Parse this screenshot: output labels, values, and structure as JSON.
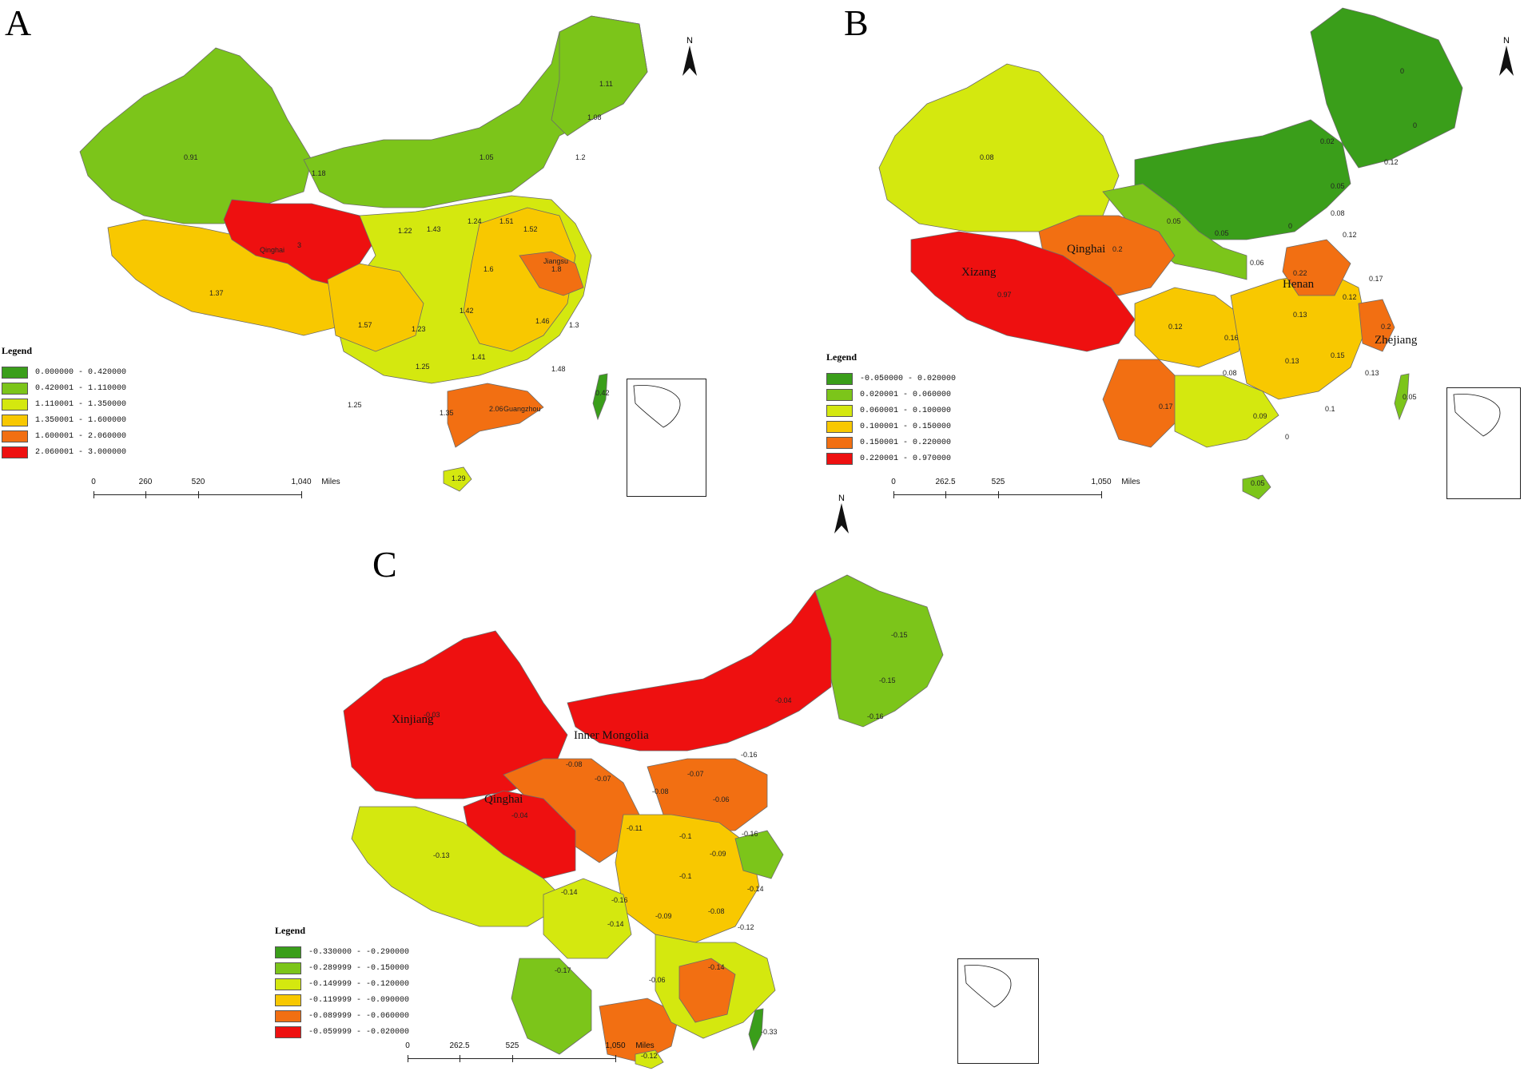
{
  "panels": [
    {
      "letter": "A",
      "legend_title": "Legend",
      "legend": [
        {
          "range": "0.000000 - 0.420000",
          "color": "#3a9e1a"
        },
        {
          "range": "0.420001 - 1.110000",
          "color": "#7cc51a"
        },
        {
          "range": "1.110001 - 1.350000",
          "color": "#d4e80f"
        },
        {
          "range": "1.350001 - 1.600000",
          "color": "#f8c800"
        },
        {
          "range": "1.600001 - 2.060000",
          "color": "#f26f12"
        },
        {
          "range": "2.060001 - 3.000000",
          "color": "#ee1010"
        }
      ],
      "scale": {
        "ticks": [
          "0",
          "260",
          "520",
          "1,040"
        ],
        "unit": "Miles"
      },
      "north": "N",
      "named_regions": [
        "Qinghai",
        "Jiangsu",
        "Guangzhou"
      ],
      "values": [
        "1.11",
        "1.08",
        "0.91",
        "1.05",
        "1.2",
        "1.18",
        "3",
        "1.22",
        "1.43",
        "1.24",
        "1.51",
        "1.52",
        "1.6",
        "1.8",
        "1.37",
        "1.57",
        "1.42",
        "1.46",
        "1.3",
        "1.23",
        "1.41",
        "1.25",
        "1.35",
        "1.48",
        "2.06",
        "1.25",
        "1.29",
        "0.42"
      ]
    },
    {
      "letter": "B",
      "legend_title": "Legend",
      "legend": [
        {
          "range": "-0.050000 - 0.020000",
          "color": "#3a9e1a"
        },
        {
          "range": "0.020001 - 0.060000",
          "color": "#7cc51a"
        },
        {
          "range": "0.060001 - 0.100000",
          "color": "#d4e80f"
        },
        {
          "range": "0.100001 - 0.150000",
          "color": "#f8c800"
        },
        {
          "range": "0.150001 - 0.220000",
          "color": "#f26f12"
        },
        {
          "range": "0.220001 - 0.970000",
          "color": "#ee1010"
        }
      ],
      "scale": {
        "ticks": [
          "0",
          "262.5",
          "525",
          "1,050"
        ],
        "unit": "Miles"
      },
      "north": "N",
      "named_regions": [
        "Qinghai",
        "Xizang",
        "Henan",
        "Zhejiang"
      ],
      "values": [
        "0",
        "0",
        "0.02",
        "0.12",
        "0.08",
        "0.05",
        "0.05",
        "0.05",
        "0.06",
        "0",
        "0.08",
        "0.12",
        "0.2",
        "0.97",
        "0.22",
        "0.17",
        "0.12",
        "0.13",
        "0.12",
        "0.16",
        "0.2",
        "0.08",
        "0.13",
        "0.15",
        "0.13",
        "0.09",
        "0.1",
        "0.17",
        "0",
        "0.05",
        "0.05"
      ]
    },
    {
      "letter": "C",
      "legend_title": "Legend",
      "legend": [
        {
          "range": "-0.330000 - -0.290000",
          "color": "#3a9e1a"
        },
        {
          "range": "-0.289999 - -0.150000",
          "color": "#7cc51a"
        },
        {
          "range": "-0.149999 - -0.120000",
          "color": "#d4e80f"
        },
        {
          "range": "-0.119999 - -0.090000",
          "color": "#f8c800"
        },
        {
          "range": "-0.089999 - -0.060000",
          "color": "#f26f12"
        },
        {
          "range": "-0.059999 - -0.020000",
          "color": "#ee1010"
        }
      ],
      "scale": {
        "ticks": [
          "0",
          "262.5",
          "525",
          "1,050"
        ],
        "unit": "Miles"
      },
      "north": "N",
      "named_regions": [
        "Xinjiang",
        "Inner Mongolia",
        "Qinghai"
      ],
      "values": [
        "-0.15",
        "-0.15",
        "-0.16",
        "-0.03",
        "-0.04",
        "-0.16",
        "-0.08",
        "-0.07",
        "-0.07",
        "-0.08",
        "-0.06",
        "-0.04",
        "-0.11",
        "-0.1",
        "-0.16",
        "-0.13",
        "-0.09",
        "-0.1",
        "-0.14",
        "-0.14",
        "-0.16",
        "-0.14",
        "-0.09",
        "-0.08",
        "-0.12",
        "-0.17",
        "-0.06",
        "-0.14",
        "-0.33",
        "-0.12"
      ]
    }
  ]
}
